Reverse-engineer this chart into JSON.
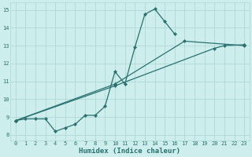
{
  "xlabel": "Humidex (Indice chaleur)",
  "bg_color": "#cdeeed",
  "line_color": "#2a7070",
  "grid_color": "#aed8d5",
  "xlim": [
    -0.5,
    23.5
  ],
  "ylim": [
    7.7,
    15.4
  ],
  "xticks": [
    0,
    1,
    2,
    3,
    4,
    5,
    6,
    7,
    8,
    9,
    10,
    11,
    12,
    13,
    14,
    15,
    16,
    17,
    18,
    19,
    20,
    21,
    22,
    23
  ],
  "yticks": [
    8,
    9,
    10,
    11,
    12,
    13,
    14,
    15
  ],
  "curve1_x": [
    0,
    1,
    2,
    3,
    4,
    5,
    6,
    7,
    8,
    9,
    10,
    11,
    12,
    13,
    14,
    15,
    16
  ],
  "curve1_y": [
    8.8,
    8.9,
    8.9,
    8.9,
    8.2,
    8.4,
    8.6,
    9.1,
    9.1,
    9.6,
    11.55,
    10.85,
    12.9,
    14.75,
    15.05,
    14.35,
    13.65
  ],
  "line2_x": [
    0,
    10,
    17,
    23
  ],
  "line2_y": [
    8.8,
    10.85,
    13.25,
    13.0
  ],
  "line3_x": [
    0,
    10,
    20,
    21,
    23
  ],
  "line3_y": [
    8.8,
    10.75,
    12.85,
    13.0,
    13.05
  ],
  "xlabel_fontsize": 6.5,
  "tick_fontsize": 5.0
}
